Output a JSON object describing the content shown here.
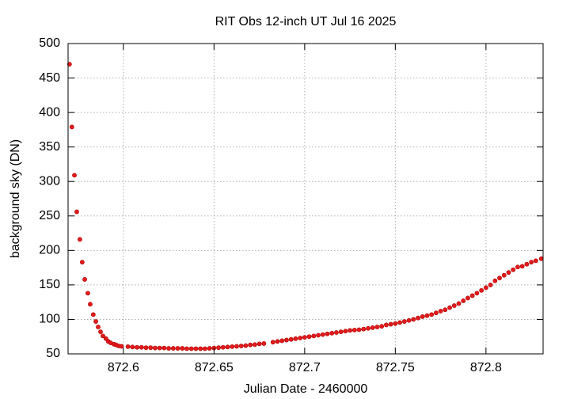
{
  "chart_data": {
    "type": "scatter",
    "title": "RIT Obs 12-inch UT Jul 16 2025",
    "xlabel": "Julian Date - 2460000",
    "ylabel": "background sky (DN)",
    "color": "#e41a1c",
    "grid": true,
    "xlim": [
      872.5695,
      872.8315
    ],
    "ylim": [
      50,
      500
    ],
    "xticks": [
      872.6,
      872.65,
      872.7,
      872.75,
      872.8
    ],
    "yticks": [
      50,
      100,
      150,
      200,
      250,
      300,
      350,
      400,
      450,
      500
    ],
    "x": [
      872.5703,
      872.5716,
      872.573,
      872.5743,
      872.576,
      872.5773,
      872.5787,
      872.5804,
      872.5817,
      872.5834,
      872.5848,
      872.5861,
      872.5874,
      872.5887,
      872.5904,
      872.5917,
      872.593,
      872.5948,
      872.596,
      872.5974,
      872.599,
      872.6025,
      872.605,
      872.6075,
      872.61,
      872.6125,
      872.615,
      872.6175,
      872.62,
      872.6225,
      872.625,
      872.6275,
      872.63,
      872.6325,
      872.635,
      872.6375,
      872.64,
      872.6425,
      872.645,
      872.6475,
      872.65,
      872.6525,
      872.655,
      872.6575,
      872.66,
      872.6625,
      872.665,
      872.6675,
      872.67,
      872.6725,
      872.675,
      872.6775,
      872.6825,
      872.685,
      872.6875,
      872.69,
      872.6925,
      872.695,
      872.6975,
      872.7,
      872.7025,
      872.705,
      872.7075,
      872.71,
      872.7125,
      872.715,
      872.7175,
      872.72,
      872.7225,
      872.725,
      872.7275,
      872.73,
      872.7325,
      872.735,
      872.7375,
      872.74,
      872.7425,
      872.745,
      872.7475,
      872.75,
      872.7525,
      872.755,
      872.7575,
      872.76,
      872.7625,
      872.765,
      872.7675,
      872.77,
      872.7725,
      872.775,
      872.7775,
      872.78,
      872.7825,
      872.785,
      872.7875,
      872.79,
      872.7925,
      872.795,
      872.7975,
      872.8,
      872.8025,
      872.805,
      872.8075,
      872.81,
      872.8125,
      872.815,
      872.8175,
      872.82,
      872.8225,
      872.825,
      872.8275,
      872.8305
    ],
    "values": [
      470,
      379,
      309,
      256,
      216,
      183,
      158,
      138,
      122,
      107,
      97,
      89,
      82,
      76,
      72,
      68,
      66,
      64,
      63,
      61.5,
      61,
      60.5,
      60,
      59.5,
      59.5,
      59,
      59,
      58.5,
      58.5,
      58.5,
      58,
      58,
      58,
      58,
      57.5,
      57.5,
      57.5,
      57.5,
      57.5,
      58,
      58.5,
      59,
      59.5,
      60,
      60.5,
      61,
      61.5,
      62,
      63,
      63.5,
      64.5,
      65,
      67,
      68,
      69,
      70,
      71,
      72,
      73,
      74,
      75,
      76,
      77,
      78,
      79,
      80,
      81,
      82,
      83,
      84,
      84.5,
      85,
      86,
      87,
      88,
      89,
      90,
      92,
      93,
      94,
      95.5,
      97,
      98.5,
      100,
      102,
      104,
      105.5,
      107,
      109.5,
      112,
      114,
      117,
      120,
      123,
      127,
      131,
      134.5,
      138,
      142,
      146,
      150,
      156,
      160,
      164,
      168,
      172,
      176,
      177,
      180,
      183,
      185,
      188
    ]
  }
}
